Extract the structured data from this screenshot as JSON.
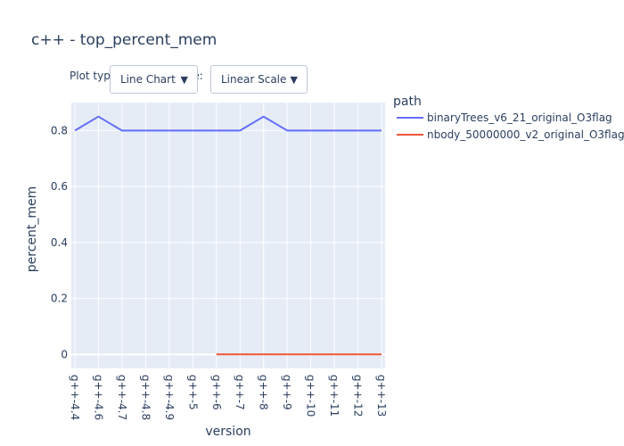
{
  "chart_data": {
    "type": "line",
    "title": "c++ - top_percent_mem",
    "xlabel": "version",
    "ylabel": "percent_mem",
    "categories": [
      "g++-4.4",
      "g++-4.6",
      "g++-4.7",
      "g++-4.8",
      "g++-4.9",
      "g++-5",
      "g++-6",
      "g++-7",
      "g++-8",
      "g++-9",
      "g++-10",
      "g++-11",
      "g++-12",
      "g++-13"
    ],
    "ylim": [
      -0.05,
      0.9
    ],
    "yticks": [
      0,
      0.2,
      0.4,
      0.6,
      0.8
    ],
    "ytick_labels": [
      "0",
      "0.2",
      "0.4",
      "0.6",
      "0.8"
    ],
    "grid": true,
    "legend": {
      "title": "path",
      "placement": "right"
    },
    "series": [
      {
        "name": "binaryTrees_v6_21_original_O3flag",
        "color": "#636efa",
        "values": [
          0.8,
          0.85,
          0.8,
          0.8,
          0.8,
          0.8,
          0.8,
          0.8,
          0.85,
          0.8,
          0.8,
          0.8,
          0.8,
          0.8
        ]
      },
      {
        "name": "nbody_50000000_v2_original_O3flag",
        "color": "#ef553b",
        "values": [
          null,
          null,
          null,
          null,
          null,
          null,
          0,
          0,
          0,
          0,
          0,
          0,
          0,
          0
        ]
      }
    ]
  },
  "controls": {
    "plot_type_label": "Plot type",
    "scale_label_fragment": "le:",
    "plot_type_value": "Line Chart",
    "scale_value": "Linear Scale",
    "arrow_glyph": "▼"
  }
}
